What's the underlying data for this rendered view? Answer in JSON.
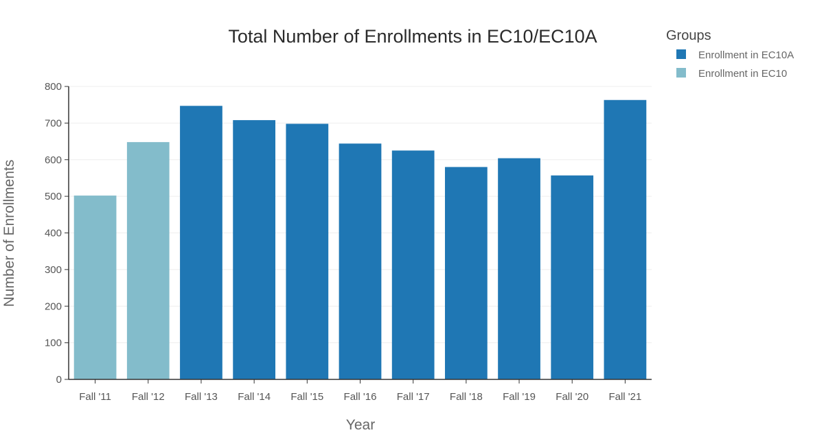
{
  "chart_data": {
    "type": "bar",
    "title": "Total Number of Enrollments in EC10/EC10A",
    "xlabel": "Year",
    "ylabel": "Number of Enrollments",
    "ylim": [
      0,
      800
    ],
    "yticks": [
      "0",
      "100",
      "200",
      "300",
      "400",
      "500",
      "600",
      "700",
      "800"
    ],
    "grid": true,
    "categories": [
      "Fall '11",
      "Fall '12",
      "Fall '13",
      "Fall '14",
      "Fall '15",
      "Fall '16",
      "Fall '17",
      "Fall '18",
      "Fall '19",
      "Fall '20",
      "Fall '21"
    ],
    "values": [
      502,
      648,
      747,
      708,
      698,
      644,
      625,
      580,
      604,
      557,
      763
    ],
    "groups": [
      "Enrollment in EC10",
      "Enrollment in EC10",
      "Enrollment in EC10A",
      "Enrollment in EC10A",
      "Enrollment in EC10A",
      "Enrollment in EC10A",
      "Enrollment in EC10A",
      "Enrollment in EC10A",
      "Enrollment in EC10A",
      "Enrollment in EC10A",
      "Enrollment in EC10A"
    ],
    "legend": {
      "title": "Groups",
      "placement": "top-right",
      "entries": [
        {
          "name": "Enrollment in EC10A",
          "color": "#1f77b4"
        },
        {
          "name": "Enrollment in EC10",
          "color": "#83bccb"
        }
      ]
    }
  }
}
